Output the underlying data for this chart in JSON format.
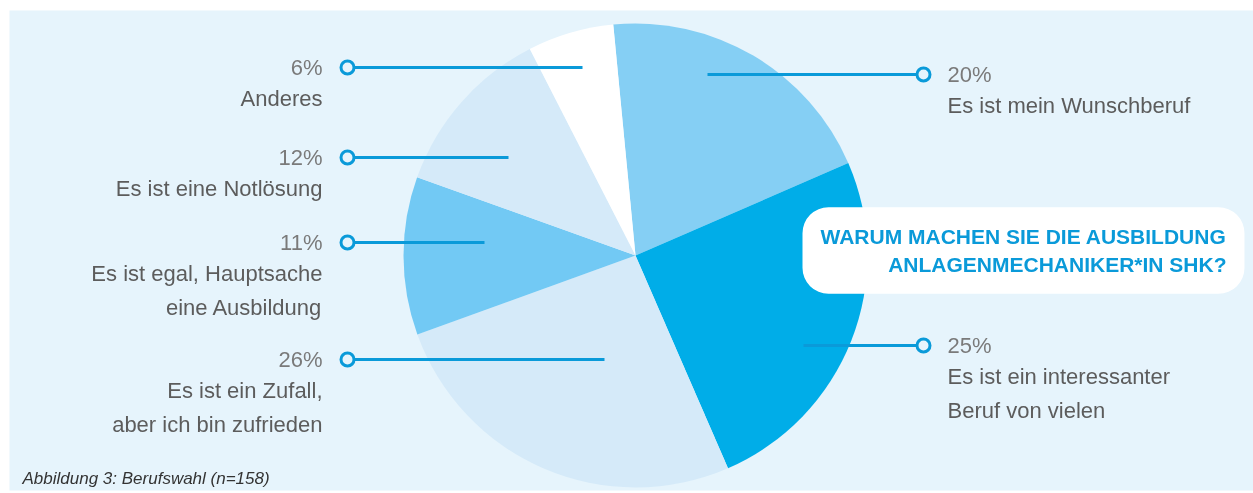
{
  "chart_data": {
    "type": "pie",
    "title": "WARUM MACHEN SIE DIE AUSBILDUNG\nANLAGENMECHANIKER*IN SHK?",
    "categories": [
      "Es ist mein Wunschberuf",
      "Es ist ein interessanter\nBeruf von vielen",
      "Es ist ein Zufall,\naber ich bin zufrieden",
      "Es ist egal, Hauptsache\neine Ausbildung",
      "Es ist eine Notlösung",
      "Anderes"
    ],
    "values": [
      20,
      25,
      26,
      11,
      12,
      6
    ],
    "colors": [
      "#85cff4",
      "#00ade8",
      "#d5eaf9",
      "#72c9f4",
      "#d5eaf9",
      "#ffffff"
    ],
    "value_labels": [
      "20%",
      "25%",
      "26%",
      "11%",
      "12%",
      "6%"
    ],
    "annotations": [
      "Abbildung 3: Berufswahl (n=158)"
    ]
  }
}
